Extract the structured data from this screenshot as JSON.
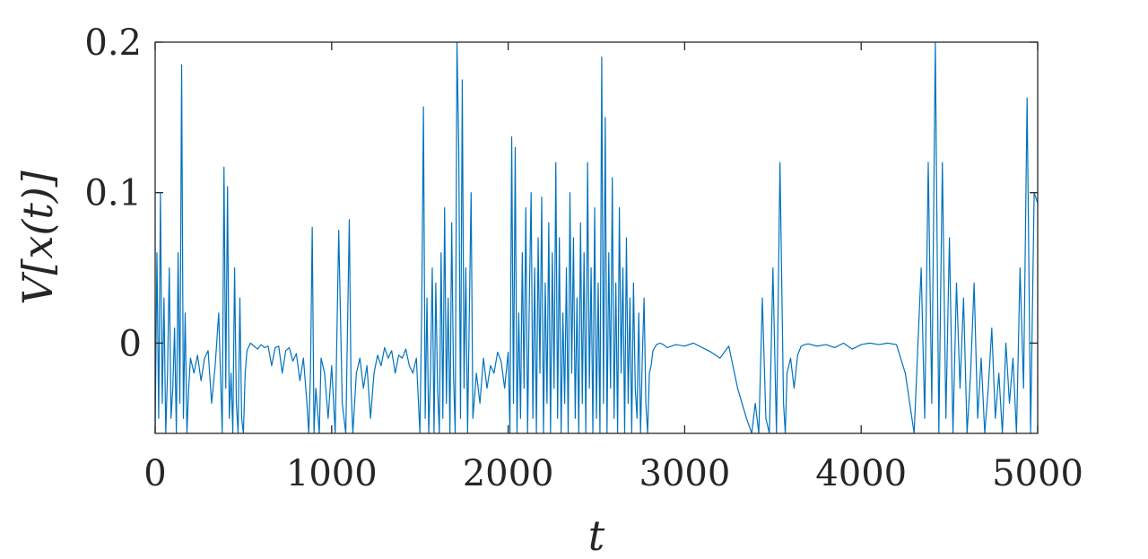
{
  "chart_data": {
    "type": "line",
    "title": "",
    "xlabel": "t",
    "ylabel": "V[x(t)]",
    "xlim": [
      0,
      5000
    ],
    "ylim": [
      -0.06,
      0.2
    ],
    "x_ticks": [
      0,
      1000,
      2000,
      3000,
      4000,
      5000
    ],
    "x_tick_labels": [
      "0",
      "1000",
      "2000",
      "3000",
      "4000",
      "5000"
    ],
    "y_ticks": [
      0,
      0.1,
      0.2
    ],
    "y_tick_labels": [
      "0",
      "0.1",
      "0.2"
    ],
    "grid": false,
    "box": true,
    "legend": "none",
    "line_color": "#0072BD",
    "axis_color": "#262626",
    "series": [
      {
        "x": [
          0,
          10,
          20,
          30,
          40,
          50,
          60,
          70,
          80,
          90,
          100,
          110,
          120,
          130,
          140,
          150,
          160,
          170,
          180,
          190,
          200,
          210,
          220,
          240,
          260,
          280,
          300,
          320,
          340,
          360,
          380,
          390,
          400,
          410,
          420,
          430,
          440,
          450,
          460,
          470,
          480,
          490,
          500,
          510,
          520,
          540,
          560,
          580,
          600,
          620,
          640,
          660,
          680,
          700,
          720,
          740,
          760,
          780,
          800,
          820,
          840,
          860,
          870,
          880,
          890,
          900,
          910,
          920,
          930,
          940,
          960,
          980,
          1000,
          1020,
          1040,
          1060,
          1080,
          1100,
          1110,
          1120,
          1140,
          1160,
          1180,
          1200,
          1220,
          1240,
          1260,
          1280,
          1300,
          1320,
          1340,
          1360,
          1380,
          1400,
          1420,
          1440,
          1460,
          1480,
          1500,
          1510,
          1520,
          1530,
          1540,
          1550,
          1560,
          1570,
          1580,
          1590,
          1600,
          1610,
          1620,
          1630,
          1640,
          1650,
          1660,
          1670,
          1680,
          1690,
          1700,
          1710,
          1720,
          1730,
          1740,
          1750,
          1760,
          1770,
          1780,
          1790,
          1800,
          1820,
          1840,
          1860,
          1880,
          1900,
          1920,
          1940,
          1960,
          1980,
          2000,
          2010,
          2020,
          2030,
          2040,
          2050,
          2060,
          2070,
          2080,
          2090,
          2100,
          2110,
          2120,
          2130,
          2140,
          2150,
          2160,
          2170,
          2180,
          2190,
          2200,
          2210,
          2220,
          2230,
          2240,
          2250,
          2260,
          2270,
          2280,
          2290,
          2300,
          2310,
          2320,
          2330,
          2340,
          2350,
          2360,
          2370,
          2380,
          2390,
          2400,
          2410,
          2420,
          2430,
          2440,
          2450,
          2460,
          2470,
          2480,
          2490,
          2500,
          2510,
          2520,
          2530,
          2540,
          2550,
          2560,
          2570,
          2580,
          2590,
          2600,
          2610,
          2620,
          2630,
          2640,
          2650,
          2660,
          2670,
          2680,
          2690,
          2700,
          2710,
          2720,
          2730,
          2740,
          2750,
          2760,
          2770,
          2780,
          2790,
          2800,
          2810,
          2820,
          2840,
          2860,
          2880,
          2900,
          2950,
          3000,
          3050,
          3100,
          3150,
          3200,
          3250,
          3300,
          3350,
          3380,
          3400,
          3420,
          3440,
          3460,
          3480,
          3500,
          3520,
          3540,
          3560,
          3570,
          3580,
          3600,
          3620,
          3640,
          3660,
          3680,
          3700,
          3750,
          3800,
          3850,
          3900,
          3950,
          4000,
          4020,
          4050,
          4100,
          4150,
          4200,
          4250,
          4300,
          4340,
          4360,
          4380,
          4400,
          4420,
          4440,
          4460,
          4480,
          4500,
          4520,
          4540,
          4560,
          4580,
          4600,
          4620,
          4640,
          4660,
          4680,
          4700,
          4720,
          4740,
          4760,
          4780,
          4800,
          4820,
          4840,
          4860,
          4880,
          4900,
          4920,
          4940,
          4960,
          4980,
          5000
        ],
        "y": [
          -0.06,
          0.06,
          -0.05,
          0.1,
          -0.04,
          0.03,
          -0.06,
          -0.02,
          0.05,
          -0.05,
          -0.03,
          0.01,
          -0.06,
          0.06,
          -0.04,
          0.185,
          -0.05,
          0.02,
          -0.06,
          -0.03,
          -0.01,
          -0.015,
          -0.02,
          -0.008,
          -0.025,
          -0.01,
          -0.005,
          -0.04,
          -0.015,
          0.02,
          -0.06,
          0.117,
          -0.03,
          0.104,
          -0.05,
          -0.02,
          -0.06,
          0.05,
          -0.04,
          -0.06,
          0.03,
          -0.05,
          -0.06,
          -0.02,
          -0.005,
          0.0,
          -0.002,
          -0.004,
          -0.001,
          -0.003,
          -0.002,
          -0.015,
          -0.003,
          -0.002,
          -0.02,
          -0.005,
          -0.003,
          -0.012,
          -0.007,
          -0.025,
          -0.01,
          -0.04,
          -0.06,
          -0.02,
          0.077,
          -0.06,
          -0.03,
          -0.045,
          -0.06,
          -0.01,
          -0.02,
          -0.05,
          -0.015,
          -0.06,
          0.075,
          -0.04,
          -0.06,
          0.082,
          -0.03,
          -0.06,
          -0.02,
          -0.01,
          -0.03,
          -0.015,
          -0.05,
          -0.02,
          -0.008,
          -0.015,
          -0.003,
          -0.01,
          -0.005,
          -0.02,
          -0.008,
          -0.01,
          -0.004,
          -0.015,
          -0.02,
          -0.01,
          -0.06,
          0.02,
          0.157,
          -0.05,
          0.03,
          -0.06,
          -0.02,
          0.05,
          -0.06,
          0.04,
          -0.03,
          -0.06,
          0.06,
          -0.05,
          0.09,
          -0.04,
          0.03,
          -0.06,
          0.08,
          -0.02,
          -0.06,
          0.2,
          0.13,
          -0.05,
          0.175,
          -0.03,
          0.05,
          -0.06,
          0.02,
          0.1,
          -0.05,
          -0.02,
          -0.04,
          -0.01,
          -0.03,
          -0.015,
          -0.02,
          -0.006,
          -0.012,
          -0.03,
          -0.006,
          -0.06,
          0.137,
          -0.04,
          0.13,
          -0.06,
          0.02,
          -0.05,
          0.06,
          -0.03,
          0.09,
          -0.06,
          0.03,
          0.1,
          -0.05,
          0.05,
          -0.06,
          0.07,
          -0.02,
          0.097,
          -0.06,
          0.04,
          -0.04,
          0.08,
          -0.06,
          0.06,
          -0.03,
          0.12,
          -0.05,
          0.07,
          -0.06,
          0.02,
          -0.04,
          0.05,
          -0.06,
          0.1,
          -0.02,
          0.07,
          -0.05,
          0.03,
          -0.06,
          0.08,
          -0.04,
          0.06,
          -0.06,
          0.12,
          -0.03,
          0.05,
          -0.06,
          0.09,
          -0.05,
          0.04,
          -0.06,
          0.19,
          -0.04,
          0.15,
          -0.06,
          0.06,
          -0.03,
          0.11,
          -0.05,
          0.04,
          -0.06,
          0.09,
          -0.02,
          0.05,
          -0.06,
          0.07,
          -0.04,
          0.03,
          -0.06,
          0.04,
          -0.03,
          -0.05,
          0.02,
          -0.06,
          -0.01,
          0.03,
          -0.04,
          -0.06,
          -0.02,
          -0.015,
          -0.005,
          -0.001,
          0.0,
          -0.001,
          -0.003,
          -0.001,
          -0.002,
          0.0,
          -0.003,
          -0.006,
          -0.01,
          -0.002,
          -0.03,
          -0.05,
          -0.06,
          -0.04,
          -0.06,
          0.03,
          -0.05,
          -0.06,
          0.05,
          -0.06,
          0.12,
          -0.04,
          -0.06,
          -0.02,
          -0.01,
          -0.03,
          -0.008,
          -0.002,
          -0.001,
          -0.0005,
          -0.002,
          -0.001,
          -0.003,
          0.0,
          -0.004,
          -0.001,
          -0.0005,
          0.0,
          -0.001,
          0.0,
          -0.001,
          -0.02,
          -0.06,
          0.05,
          -0.05,
          0.12,
          -0.04,
          0.2,
          -0.06,
          0.12,
          -0.05,
          0.07,
          -0.06,
          0.04,
          -0.03,
          0.03,
          -0.06,
          -0.02,
          0.04,
          -0.05,
          -0.01,
          -0.06,
          -0.03,
          0.01,
          -0.05,
          -0.02,
          -0.06,
          0.0,
          -0.04,
          -0.01,
          -0.06,
          0.05,
          -0.03,
          0.163,
          -0.06,
          0.1,
          0.093
        ]
      }
    ]
  }
}
